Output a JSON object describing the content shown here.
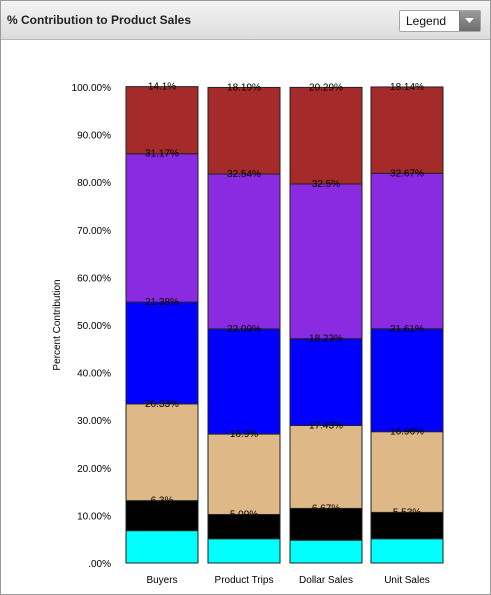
{
  "header": {
    "title": "% Contribution to Product Sales",
    "legend_dropdown": {
      "selected": "Legend",
      "icon": "chevron-down-icon"
    }
  },
  "chart_data": {
    "type": "bar",
    "stacked": true,
    "categories": [
      "Buyers",
      "Product Trips",
      "Dollar Sales",
      "Unit Sales"
    ],
    "ylabel": "Percent Contribution",
    "ylim": [
      0,
      100
    ],
    "yticks": [
      0,
      10,
      20,
      30,
      40,
      50,
      60,
      70,
      80,
      90,
      100
    ],
    "ytick_labels": [
      ".00%",
      "10.00%",
      "20.00%",
      "30.00%",
      "40.00%",
      "50.00%",
      "60.00%",
      "70.00%",
      "80.00%",
      "90.00%",
      "100.00%"
    ],
    "series": [
      {
        "color": "#00ffff",
        "values": [
          6.8,
          5.1,
          4.8,
          5.1
        ],
        "labels": [
          "",
          "",
          "",
          ""
        ]
      },
      {
        "color": "#000000",
        "values": [
          6.3,
          5.09,
          6.67,
          5.53
        ],
        "labels": [
          "6.3%",
          "5.09%",
          "6.67%",
          "5.53%"
        ]
      },
      {
        "color": "#deb887",
        "values": [
          20.33,
          16.9,
          17.43,
          16.96
        ],
        "labels": [
          "20.33%",
          "16.9%",
          "17.43%",
          "16.96%"
        ]
      },
      {
        "color": "#0000ff",
        "values": [
          21.38,
          22.09,
          18.23,
          21.61
        ],
        "labels": [
          "21.38%",
          "22.09%",
          "18.23%",
          "21.61%"
        ]
      },
      {
        "color": "#8a2be2",
        "values": [
          31.17,
          32.54,
          32.5,
          32.67
        ],
        "labels": [
          "31.17%",
          "32.54%",
          "32.5%",
          "32.67%"
        ]
      },
      {
        "color": "#a52a2a",
        "values": [
          14.1,
          18.19,
          20.29,
          18.14
        ],
        "labels": [
          "14.1%",
          "18.19%",
          "20.29%",
          "18.14%"
        ]
      }
    ]
  }
}
